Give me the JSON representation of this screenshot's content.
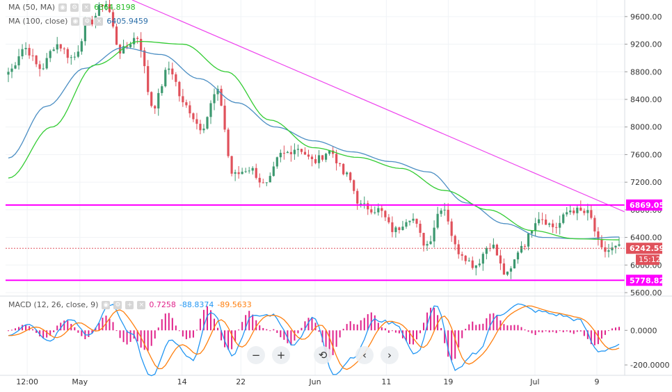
{
  "legend": {
    "ma50": {
      "label": "MA (50, MA)",
      "value": "6364.8198",
      "color": "#22bb22"
    },
    "ma100": {
      "label": "MA (100, close)",
      "value": "6405.9459",
      "color": "#2b6ea8"
    },
    "macd": {
      "label": "MACD (12, 26, close, 9)",
      "hist_value": "0.7258",
      "macd_value": "-88.8374",
      "signal_value": "-89.5633",
      "hist_color": "#e0218a",
      "macd_color": "#2196f3",
      "signal_color": "#ff7f0e"
    }
  },
  "nav": {
    "zoom_out": "−",
    "zoom_in": "+",
    "reset": "⟲",
    "back": "‹",
    "forward": "›"
  },
  "colors": {
    "up": "#3d9970",
    "down": "#e0515b",
    "ma50": "#33cc33",
    "ma100": "#4b8ec3",
    "trendline": "#ee44ee",
    "hline": "#ff00ff",
    "last_price": "#e0515b"
  },
  "chart_data": {
    "type": "candlestick",
    "price_axis": {
      "ylim": [
        5560,
        9840
      ],
      "ticks": [
        "9600.00",
        "9200.00",
        "8800.00",
        "8400.00",
        "8000.00",
        "7600.00",
        "7200.00",
        "6800.00",
        "6400.00",
        "6000.00",
        "5600.00"
      ]
    },
    "macd_axis": {
      "ylim": [
        -260,
        190
      ],
      "ticks": [
        "0.0000",
        "-200.0000"
      ]
    },
    "x_labels": [
      "12:00",
      "May",
      "14",
      "22",
      "Jun",
      "11",
      "19",
      "Jul",
      "9"
    ],
    "horizontal_lines": [
      {
        "value": 6869.05,
        "label": "6869.05"
      },
      {
        "value": 5778.82,
        "label": "5778.82"
      }
    ],
    "last_price": {
      "value": 6242.59,
      "label": "6242.59",
      "countdown": "15:12"
    },
    "trendline": {
      "from": 9840,
      "to": 6770
    },
    "anchors": [
      8800,
      9150,
      8850,
      9200,
      9000,
      9500,
      9800,
      9100,
      9300,
      8300,
      8850,
      8300,
      8000,
      8500,
      7300,
      7400,
      7150,
      7600,
      7700,
      7500,
      7650,
      7300,
      6850,
      6800,
      6500,
      6700,
      6300,
      6850,
      6200,
      6000,
      6300,
      5850,
      6300,
      6700,
      6550,
      6800,
      6750,
      6200,
      6250
    ],
    "ma100_anchors": [
      7550,
      8300,
      8850,
      9150,
      9050,
      8700,
      8350,
      8000,
      7800,
      7640,
      7500,
      7350,
      6900,
      6600,
      6400,
      6380,
      6406
    ],
    "ma50_anchors": [
      7260,
      8000,
      8900,
      9240,
      9200,
      8800,
      8100,
      7700,
      7560,
      7400,
      7080,
      6800,
      6500,
      6380,
      6365
    ],
    "macd_anchors": [
      -30,
      40,
      -60,
      70,
      -30,
      150,
      -10,
      -270,
      -60,
      -170,
      110,
      -140,
      80,
      90,
      -80,
      70,
      -250,
      -150,
      60,
      40,
      -140,
      140,
      -230,
      -130,
      80,
      150,
      110,
      90,
      60,
      -120,
      -89
    ]
  }
}
